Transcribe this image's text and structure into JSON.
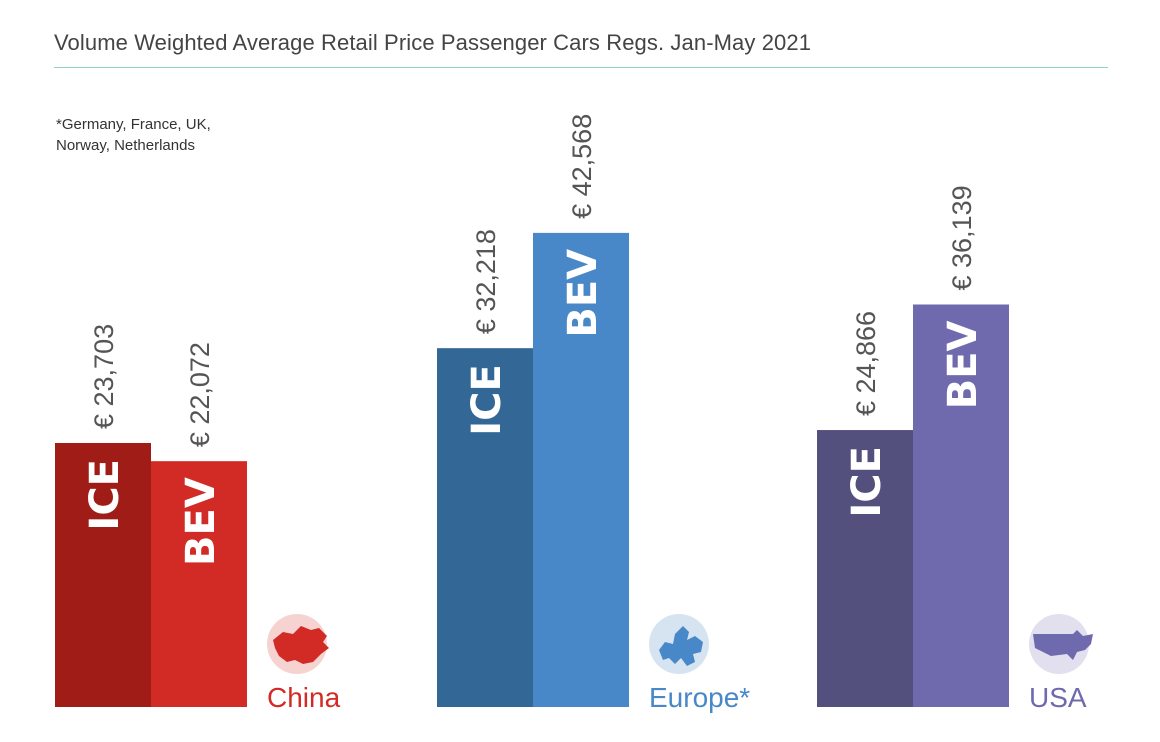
{
  "chart_data": {
    "type": "bar",
    "title": "Volume Weighted Average Retail Price Passenger Cars Regs. Jan-May 2021",
    "footnote": "*Germany, France, UK, Norway, Netherlands",
    "footnote_lines": [
      "*Germany, France, UK,",
      "Norway, Netherlands"
    ],
    "currency_symbol": "€",
    "ylim": [
      0,
      50000
    ],
    "groups": [
      {
        "region": "China",
        "icon": "china-map-icon",
        "bars": [
          {
            "series": "ICE",
            "value": 23703,
            "label": "€ 23,703",
            "color": "#a01c16"
          },
          {
            "series": "BEV",
            "value": 22072,
            "label": "€ 22,072",
            "color": "#d22b25"
          }
        ],
        "region_color": "#d22b25",
        "icon_bg": "#f6d3d0"
      },
      {
        "region": "Europe*",
        "icon": "europe-map-icon",
        "bars": [
          {
            "series": "ICE",
            "value": 32218,
            "label": "€ 32,218",
            "color": "#336896"
          },
          {
            "series": "BEV",
            "value": 42568,
            "label": "€ 42,568",
            "color": "#4888c8"
          }
        ],
        "region_color": "#4888c8",
        "icon_bg": "#d6e4f2"
      },
      {
        "region": "USA",
        "icon": "usa-map-icon",
        "bars": [
          {
            "series": "ICE",
            "value": 24866,
            "label": "€ 24,866",
            "color": "#54507e"
          },
          {
            "series": "BEV",
            "value": 36139,
            "label": "€ 36,139",
            "color": "#6f6aad"
          }
        ],
        "region_color": "#6f6aad",
        "icon_bg": "#e2e0ef"
      }
    ]
  }
}
